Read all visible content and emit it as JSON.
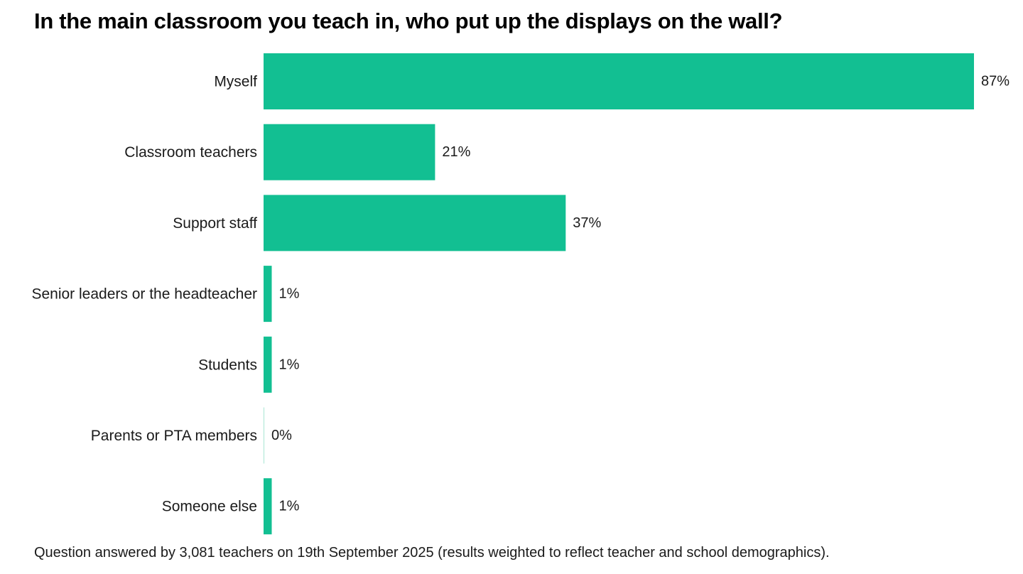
{
  "chart_data": {
    "type": "bar",
    "orientation": "horizontal",
    "title": "In the main classroom you teach in, who put up the displays on the wall?",
    "categories": [
      "Myself",
      "Classroom teachers",
      "Support staff",
      "Senior leaders or the headteacher",
      "Students",
      "Parents or PTA members",
      "Someone else"
    ],
    "values": [
      87,
      21,
      37,
      1,
      1,
      0,
      1
    ],
    "value_labels": [
      "87%",
      "21%",
      "37%",
      "1%",
      "1%",
      "0%",
      "1%"
    ],
    "unit": "%",
    "xlim": [
      0,
      87
    ],
    "grid": false,
    "legend": "none",
    "bar_color": "#12bf92"
  },
  "footnote": "Question answered by 3,081 teachers on 19th September 2025 (results weighted to reflect teacher and school demographics)."
}
